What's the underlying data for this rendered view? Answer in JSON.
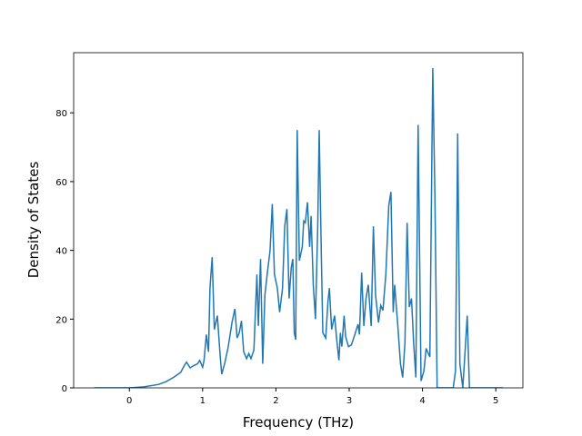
{
  "chart_data": {
    "type": "line",
    "xlabel": "Frequency (THz)",
    "ylabel": "Density of States",
    "xlim": [
      -0.76,
      5.37
    ],
    "ylim": [
      0,
      97.5
    ],
    "xticks": [
      0,
      1,
      2,
      3,
      4,
      5
    ],
    "yticks": [
      0,
      20,
      40,
      60,
      80
    ],
    "series": [
      {
        "color": "#1f77b4",
        "x": [
          -0.48,
          0.0,
          0.2,
          0.4,
          0.5,
          0.6,
          0.7,
          0.75,
          0.78,
          0.83,
          0.88,
          0.93,
          0.96,
          1.0,
          1.02,
          1.05,
          1.08,
          1.1,
          1.13,
          1.16,
          1.2,
          1.24,
          1.26,
          1.3,
          1.35,
          1.4,
          1.44,
          1.47,
          1.5,
          1.53,
          1.56,
          1.6,
          1.63,
          1.66,
          1.7,
          1.74,
          1.76,
          1.79,
          1.82,
          1.85,
          1.88,
          1.92,
          1.95,
          1.98,
          2.02,
          2.05,
          2.09,
          2.12,
          2.15,
          2.18,
          2.21,
          2.23,
          2.25,
          2.27,
          2.29,
          2.32,
          2.36,
          2.38,
          2.4,
          2.43,
          2.46,
          2.48,
          2.51,
          2.54,
          2.57,
          2.59,
          2.62,
          2.64,
          2.68,
          2.71,
          2.73,
          2.76,
          2.8,
          2.83,
          2.86,
          2.88,
          2.9,
          2.93,
          2.95,
          2.99,
          3.03,
          3.07,
          3.12,
          3.14,
          3.17,
          3.2,
          3.23,
          3.26,
          3.3,
          3.33,
          3.36,
          3.4,
          3.43,
          3.46,
          3.5,
          3.54,
          3.57,
          3.6,
          3.62,
          3.66,
          3.7,
          3.73,
          3.76,
          3.79,
          3.82,
          3.85,
          3.88,
          3.91,
          3.94,
          3.98,
          4.02,
          4.05,
          4.08,
          4.1,
          4.14,
          4.17,
          4.2,
          4.3,
          4.42,
          4.45,
          4.48,
          4.51,
          4.55,
          4.58,
          4.61,
          4.64,
          4.7,
          5.1
        ],
        "values": [
          0,
          0,
          0.3,
          1,
          1.8,
          3,
          4.5,
          6.5,
          7.5,
          5.8,
          6.5,
          7,
          8,
          6,
          8,
          15.5,
          10.5,
          29,
          38,
          17,
          21,
          9,
          4,
          7,
          12,
          19,
          23,
          14.5,
          16,
          19.5,
          10.5,
          8.5,
          10,
          8.5,
          11,
          33,
          18,
          37.5,
          7,
          27,
          33,
          40,
          53.5,
          33,
          29,
          22,
          29,
          47,
          52,
          26,
          35,
          37.5,
          16,
          14,
          75,
          37,
          41,
          48.5,
          48,
          54,
          41,
          50,
          30,
          20,
          47,
          75,
          38,
          16,
          14.5,
          25,
          29,
          17,
          21,
          14,
          8,
          16,
          12,
          21,
          15,
          12,
          12.5,
          15,
          18.5,
          15.5,
          33.5,
          18,
          26,
          30,
          18,
          47,
          27,
          19,
          24,
          22.5,
          33,
          53,
          57,
          22,
          30,
          19,
          7,
          3,
          13,
          48,
          23.5,
          26,
          13,
          3,
          76.5,
          2,
          5,
          11.5,
          10,
          9,
          93,
          55,
          0,
          0,
          0,
          5,
          74,
          7,
          0,
          10,
          21,
          0,
          0,
          0
        ]
      }
    ]
  }
}
